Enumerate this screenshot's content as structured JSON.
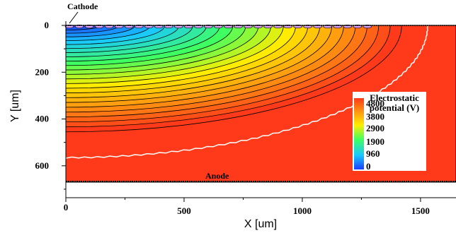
{
  "chart_data": {
    "type": "heatmap",
    "title": "",
    "xlabel": "X [um]",
    "ylabel": "Y [um]",
    "xlim": [
      0,
      1650
    ],
    "ylim": [
      0,
      670
    ],
    "y_axis_inverted": true,
    "x_ticks": [
      "0",
      "500",
      "1000",
      "1500"
    ],
    "y_ticks": [
      "0",
      "200",
      "400",
      "600"
    ],
    "x_tick_values": [
      0,
      500,
      1000,
      1500
    ],
    "y_tick_values": [
      0,
      200,
      400,
      600
    ],
    "colorbar": {
      "title_line1": "Electrostatic",
      "title_line2": "potential (V)",
      "labels": [
        "4800",
        "3800",
        "2900",
        "1900",
        "960",
        "0"
      ],
      "values": [
        4800,
        3800,
        2900,
        1900,
        960,
        0
      ],
      "min": 0,
      "max": 4800,
      "placement": "right-inside"
    },
    "annotations": {
      "cathode": "Cathode",
      "anode": "Anode"
    },
    "contour_levels": 24,
    "colors": {
      "low": "#1a3cff",
      "high": "#ff3a1a",
      "background_region": "#ff3a1a",
      "contour_line": "#000000",
      "white_contour": "#ffffff"
    }
  }
}
